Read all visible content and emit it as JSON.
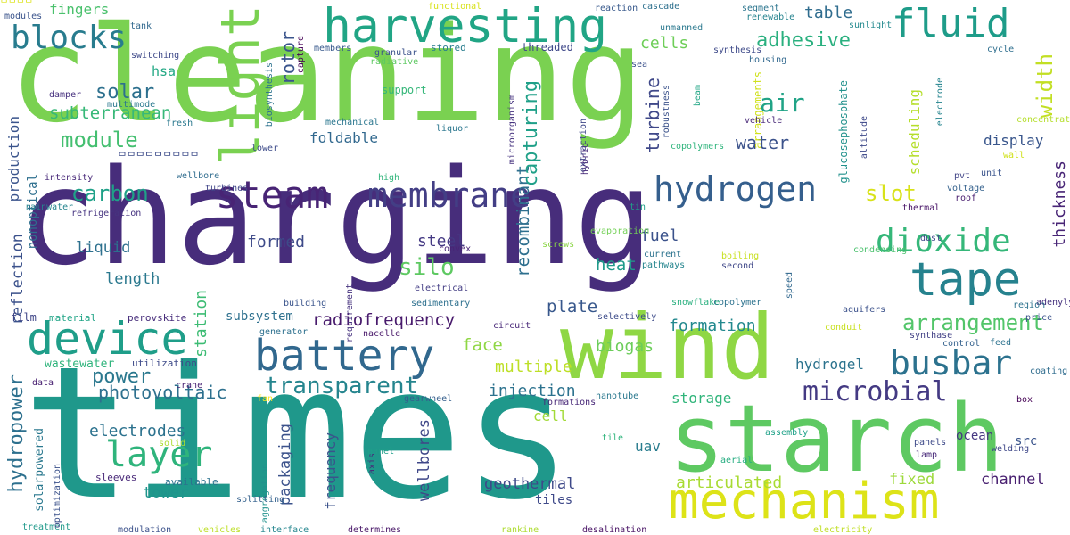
{
  "words": [
    {
      "text": "cleaning",
      "color": "#7ad151"
    },
    {
      "text": "charging",
      "color": "#472d7b"
    },
    {
      "text": "times",
      "color": "#1f988b"
    },
    {
      "text": "starch",
      "color": "#5ec962"
    },
    {
      "text": "wind",
      "color": "#8fd744"
    },
    {
      "text": "mechanism",
      "color": "#dde318"
    },
    {
      "text": "harvesting",
      "color": "#21a585"
    },
    {
      "text": "fluid",
      "color": "#1e9c89"
    },
    {
      "text": "light",
      "color": "#7ad151"
    },
    {
      "text": "battery",
      "color": "#31688e"
    },
    {
      "text": "device",
      "color": "#1f9e89"
    },
    {
      "text": "steam",
      "color": "#482475"
    },
    {
      "text": "membrane",
      "color": "#433e85"
    },
    {
      "text": "hydrogen",
      "color": "#355f8d"
    },
    {
      "text": "tape",
      "color": "#26828e"
    },
    {
      "text": "dioxide",
      "color": "#35b779"
    },
    {
      "text": "busbar",
      "color": "#2c728e"
    },
    {
      "text": "microbial",
      "color": "#443a83"
    },
    {
      "text": "blocks",
      "color": "#287c8e"
    },
    {
      "text": "layer",
      "color": "#2fb47c"
    },
    {
      "text": "width",
      "color": "#c2df23"
    },
    {
      "text": "adhesive",
      "color": "#2ab07f"
    },
    {
      "text": "air",
      "color": "#20a386"
    },
    {
      "text": "transparent",
      "color": "#25858e"
    },
    {
      "text": "arrangement",
      "color": "#52c569"
    },
    {
      "text": "solar",
      "color": "#2d708e"
    },
    {
      "text": "module",
      "color": "#44bf70"
    },
    {
      "text": "carbon",
      "color": "#1fa188"
    },
    {
      "text": "power",
      "color": "#2a788e"
    },
    {
      "text": "photovoltaic",
      "color": "#2d708e"
    },
    {
      "text": "hydropower",
      "color": "#2d708e"
    },
    {
      "text": "electrodes",
      "color": "#2c728e"
    },
    {
      "text": "silo",
      "color": "#5ec962"
    },
    {
      "text": "slot",
      "color": "#d8e219"
    },
    {
      "text": "subterranean",
      "color": "#37b878"
    },
    {
      "text": "cells",
      "color": "#6ece58"
    },
    {
      "text": "table",
      "color": "#2f6c8e"
    },
    {
      "text": "rotor",
      "color": "#3a548c"
    },
    {
      "text": "water",
      "color": "#3b528b"
    },
    {
      "text": "foldable",
      "color": "#31688e"
    },
    {
      "text": "recombinant",
      "color": "#2e6f8e"
    },
    {
      "text": "turbine",
      "color": "#3f4889"
    },
    {
      "text": "capturing",
      "color": "#1fa088"
    },
    {
      "text": "display",
      "color": "#39568c"
    },
    {
      "text": "thickness",
      "color": "#482576"
    },
    {
      "text": "scheduling",
      "color": "#b5de2b"
    },
    {
      "text": "formed",
      "color": "#3e4a89"
    },
    {
      "text": "liquid",
      "color": "#2d708e"
    },
    {
      "text": "length",
      "color": "#2a788e"
    },
    {
      "text": "reflection",
      "color": "#3b518b"
    },
    {
      "text": "nonoptical",
      "color": "#2e6f8e"
    },
    {
      "text": "station",
      "color": "#3dbc74"
    },
    {
      "text": "steel",
      "color": "#443983"
    },
    {
      "text": "fuel",
      "color": "#3b528b"
    },
    {
      "text": "heat",
      "color": "#1f9a8a"
    },
    {
      "text": "plate",
      "color": "#38588c"
    },
    {
      "text": "radiofrequency",
      "color": "#481a6c"
    },
    {
      "text": "face",
      "color": "#8fd744"
    },
    {
      "text": "biogas",
      "color": "#6ccd5a"
    },
    {
      "text": "formation",
      "color": "#23898e"
    },
    {
      "text": "hydrogel",
      "color": "#2c738e"
    },
    {
      "text": "multiple",
      "color": "#bddf26"
    },
    {
      "text": "injection",
      "color": "#2c728e"
    },
    {
      "text": "storage",
      "color": "#31b57b"
    },
    {
      "text": "cell",
      "color": "#a2da37"
    },
    {
      "text": "uav",
      "color": "#287c8e"
    },
    {
      "text": "tower",
      "color": "#1f948c"
    },
    {
      "text": "packaging",
      "color": "#3b528b"
    },
    {
      "text": "wellbores",
      "color": "#3f4788"
    },
    {
      "text": "frequency",
      "color": "#3b528b"
    },
    {
      "text": "geothermal",
      "color": "#3e4989"
    },
    {
      "text": "articulated",
      "color": "#a8db34"
    },
    {
      "text": "fixed",
      "color": "#9dd93b"
    },
    {
      "text": "channel",
      "color": "#481f70"
    },
    {
      "text": "ocean",
      "color": "#453781"
    },
    {
      "text": "src",
      "color": "#3a548c"
    },
    {
      "text": "tiles",
      "color": "#3e4989"
    },
    {
      "text": "subsystem",
      "color": "#2d708e"
    },
    {
      "text": "fingers",
      "color": "#4ac16d"
    },
    {
      "text": "hsa",
      "color": "#22a884"
    },
    {
      "text": "production",
      "color": "#3a548c"
    },
    {
      "text": "solarpowered",
      "color": "#2a788e"
    },
    {
      "text": "film",
      "color": "#404688"
    },
    {
      "text": "material",
      "color": "#20a486"
    },
    {
      "text": "perovskite",
      "color": "#472d7b"
    },
    {
      "text": "wastewater",
      "color": "#2fb47c"
    },
    {
      "text": "utilization",
      "color": "#3e4a89"
    },
    {
      "text": "data",
      "color": "#482071"
    },
    {
      "text": "crane",
      "color": "#482173"
    },
    {
      "text": "sleeves",
      "color": "#482878"
    },
    {
      "text": "available",
      "color": "#2c728e"
    },
    {
      "text": "treatment",
      "color": "#1f998a"
    },
    {
      "text": "modulation",
      "color": "#3b518b"
    },
    {
      "text": "vehicles",
      "color": "#bddf26"
    },
    {
      "text": "interface",
      "color": "#24868e"
    },
    {
      "text": "determines",
      "color": "#481668"
    },
    {
      "text": "rankine",
      "color": "#addc30"
    },
    {
      "text": "desalination",
      "color": "#471164"
    },
    {
      "text": "electricity",
      "color": "#c0df25"
    },
    {
      "text": "optimization",
      "color": "#3b528b"
    },
    {
      "text": "solid",
      "color": "#addc30"
    },
    {
      "text": "fan",
      "color": "#fde725"
    },
    {
      "text": "gearwheel",
      "color": "#355f8d"
    },
    {
      "text": "nanotube",
      "color": "#2a788e"
    },
    {
      "text": "formations",
      "color": "#482878"
    },
    {
      "text": "electrical",
      "color": "#433d84"
    },
    {
      "text": "sedimentary",
      "color": "#2d708e"
    },
    {
      "text": "convex",
      "color": "#482475"
    },
    {
      "text": "granular",
      "color": "#3b528b"
    },
    {
      "text": "members",
      "color": "#38598c"
    },
    {
      "text": "capture",
      "color": "#440154"
    },
    {
      "text": "switching",
      "color": "#3e4989"
    },
    {
      "text": "modules",
      "color": "#3a538b"
    },
    {
      "text": "tank",
      "color": "#31688e"
    },
    {
      "text": "multimode",
      "color": "#2a788e"
    },
    {
      "text": "damper",
      "color": "#46307e"
    },
    {
      "text": "fresh",
      "color": "#2a788e"
    },
    {
      "text": "biosynthesis",
      "color": "#2c728e"
    },
    {
      "text": "mechanical",
      "color": "#2a768e"
    },
    {
      "text": "lower",
      "color": "#3e4c8a"
    },
    {
      "text": "wellbore",
      "color": "#2f6c8e"
    },
    {
      "text": "turbines",
      "color": "#404588"
    },
    {
      "text": "intensity",
      "color": "#482979"
    },
    {
      "text": "rainwater",
      "color": "#25848e"
    },
    {
      "text": "refrigeration",
      "color": "#463480"
    },
    {
      "text": "generator",
      "color": "#2d708e"
    },
    {
      "text": "nacelle",
      "color": "#481769"
    },
    {
      "text": "aggregation",
      "color": "#21918c"
    },
    {
      "text": "splitting",
      "color": "#34618d"
    },
    {
      "text": "panel",
      "color": "#1f9e89"
    },
    {
      "text": "axis",
      "color": "#482979"
    },
    {
      "text": "requirement",
      "color": "#46327e"
    },
    {
      "text": "building",
      "color": "#3a548c"
    },
    {
      "text": "high",
      "color": "#31b57b"
    },
    {
      "text": "functional",
      "color": "#d8e219"
    },
    {
      "text": "reaction",
      "color": "#38598c"
    },
    {
      "text": "cascade",
      "color": "#2d708e"
    },
    {
      "text": "unmanned",
      "color": "#2a788e"
    },
    {
      "text": "sunlight",
      "color": "#23898e"
    },
    {
      "text": "segment",
      "color": "#2b758e"
    },
    {
      "text": "renewable",
      "color": "#25838e"
    },
    {
      "text": "synthesis",
      "color": "#3e4a89"
    },
    {
      "text": "sea",
      "color": "#3b518b"
    },
    {
      "text": "housing",
      "color": "#31688e"
    },
    {
      "text": "cycle",
      "color": "#2e6e8e"
    },
    {
      "text": "threaded",
      "color": "#3f4889"
    },
    {
      "text": "radiative",
      "color": "#5ec962"
    },
    {
      "text": "support",
      "color": "#35b779"
    },
    {
      "text": "arrangements",
      "color": "#d0e11c"
    },
    {
      "text": "glucosephosphate",
      "color": "#21918c"
    },
    {
      "text": "microorganism",
      "color": "#46337f"
    },
    {
      "text": "extraction",
      "color": "#3f4788"
    },
    {
      "text": "liquor",
      "color": "#2a768e"
    },
    {
      "text": "hybrid",
      "color": "#472a7a"
    },
    {
      "text": "copolymers",
      "color": "#2fb47c"
    },
    {
      "text": "beam",
      "color": "#21a685"
    },
    {
      "text": "robustness",
      "color": "#3b528b"
    },
    {
      "text": "vehicle",
      "color": "#482878"
    },
    {
      "text": "altitude",
      "color": "#3e4989"
    },
    {
      "text": "electrode",
      "color": "#25848e"
    },
    {
      "text": "concentrating",
      "color": "#b5de2b"
    },
    {
      "text": "wall",
      "color": "#d0e11c"
    },
    {
      "text": "unit",
      "color": "#3a548c"
    },
    {
      "text": "pvt",
      "color": "#414487"
    },
    {
      "text": "voltage",
      "color": "#34618d"
    },
    {
      "text": "roof",
      "color": "#481d6f"
    },
    {
      "text": "thermal",
      "color": "#481467"
    },
    {
      "text": "tin",
      "color": "#1fa088"
    },
    {
      "text": "evaporation",
      "color": "#73d056"
    },
    {
      "text": "screws",
      "color": "#8bd646"
    },
    {
      "text": "current",
      "color": "#2c738e"
    },
    {
      "text": "pathways",
      "color": "#25858e"
    },
    {
      "text": "snowflake",
      "color": "#2ab07f"
    },
    {
      "text": "boiling",
      "color": "#c8e020"
    },
    {
      "text": "second",
      "color": "#3f4788"
    },
    {
      "text": "speed",
      "color": "#31688e"
    },
    {
      "text": "condensing",
      "color": "#4ac16d"
    },
    {
      "text": "dust",
      "color": "#3f4889"
    },
    {
      "text": "adenylyltransferase",
      "color": "#46327e"
    },
    {
      "text": "price",
      "color": "#3b528b"
    },
    {
      "text": "region",
      "color": "#2c728e"
    },
    {
      "text": "synthase",
      "color": "#424186"
    },
    {
      "text": "aquifers",
      "color": "#3b518b"
    },
    {
      "text": "copolymer",
      "color": "#2c728e"
    },
    {
      "text": "conduit",
      "color": "#c8e020"
    },
    {
      "text": "control",
      "color": "#34618d"
    },
    {
      "text": "feed",
      "color": "#2c728e"
    },
    {
      "text": "selectively",
      "color": "#3e4c8a"
    },
    {
      "text": "circuit",
      "color": "#482878"
    },
    {
      "text": "coating",
      "color": "#2f6c8e"
    },
    {
      "text": "box",
      "color": "#440154"
    },
    {
      "text": "assembly",
      "color": "#1fa188"
    },
    {
      "text": "panels",
      "color": "#3e4a89"
    },
    {
      "text": "lamp",
      "color": "#482979"
    },
    {
      "text": "welding",
      "color": "#3f4889"
    },
    {
      "text": "aerial",
      "color": "#26ad81"
    },
    {
      "text": "tile",
      "color": "#2fb47c"
    },
    {
      "text": "stored",
      "color": "#287d8e"
    },
    {
      "text": "ᄆᄆᄆᄆᄆᄆᄆᄆᄆ",
      "color": "#3e4c8a"
    },
    {
      "text": "ᄆᄆᄆᄆ",
      "color": "#dde318"
    }
  ]
}
